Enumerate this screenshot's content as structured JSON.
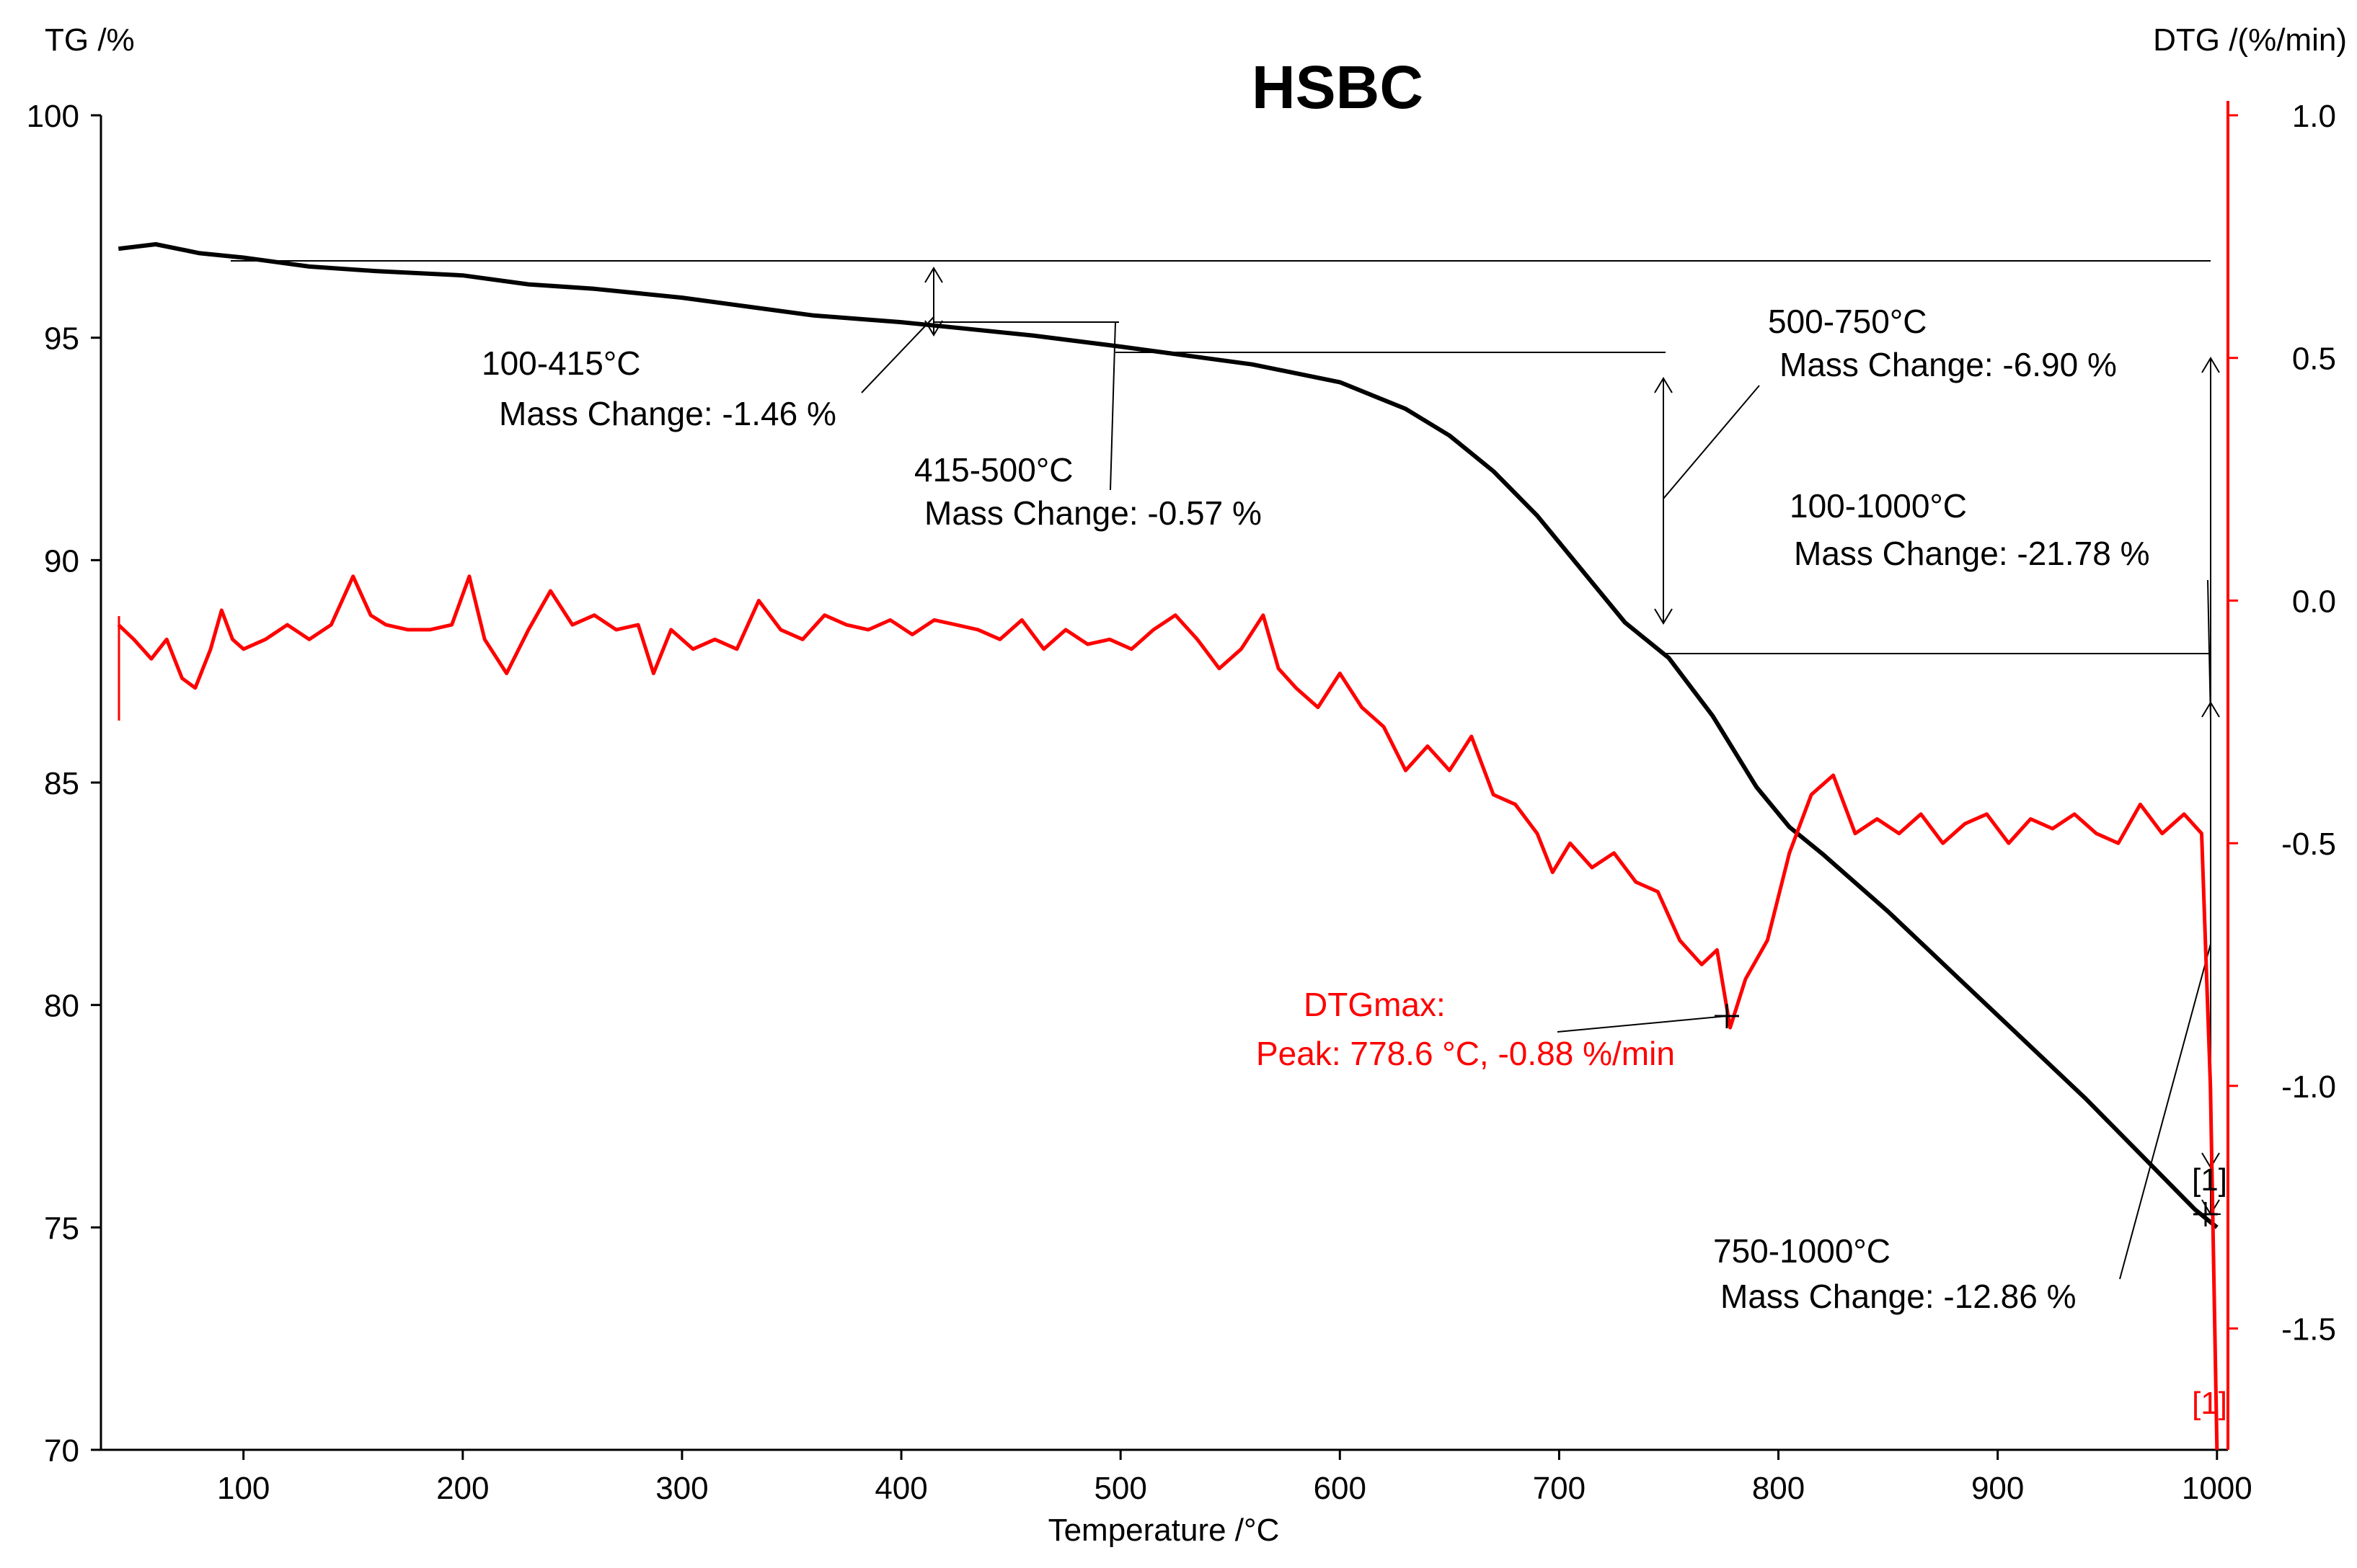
{
  "chart_data": {
    "type": "line",
    "title": "HSBC",
    "xlabel": "Temperature /°C",
    "ylabel_left": "TG /%",
    "ylabel_right": "DTG /(%/min)",
    "xlim": [
      35,
      1005
    ],
    "ylim_left": [
      70,
      100
    ],
    "ylim_right": [
      -1.75,
      1.0
    ],
    "x_ticks": [
      "100",
      "200",
      "300",
      "400",
      "500",
      "600",
      "700",
      "800",
      "900",
      "1000"
    ],
    "y_ticks_left": [
      "100",
      "95",
      "90",
      "85",
      "80",
      "75",
      "70"
    ],
    "y_ticks_right": [
      "1.0",
      "0.5",
      "0.0",
      "-0.5",
      "-1.0",
      "-1.5"
    ],
    "grid": false,
    "colors": {
      "tg": "#000000",
      "dtg": "#ff0000",
      "annotation": "#000000"
    },
    "series": [
      {
        "axis": "left",
        "x": [
          43,
          60,
          80,
          100,
          130,
          160,
          200,
          230,
          260,
          300,
          330,
          360,
          400,
          430,
          460,
          500,
          530,
          560,
          600,
          630,
          650,
          670,
          690,
          710,
          730,
          750,
          770,
          790,
          805,
          820,
          850,
          880,
          910,
          940,
          970,
          990,
          1000
        ],
        "values": [
          97.0,
          97.1,
          96.9,
          96.8,
          96.6,
          96.5,
          96.4,
          96.2,
          96.1,
          95.9,
          95.7,
          95.5,
          95.35,
          95.2,
          95.05,
          94.8,
          94.6,
          94.4,
          94.0,
          93.4,
          92.8,
          92.0,
          91.0,
          89.8,
          88.6,
          87.8,
          86.5,
          84.9,
          84.0,
          83.4,
          82.1,
          80.7,
          79.3,
          77.9,
          76.4,
          75.4,
          75.0
        ]
      },
      {
        "axis": "right",
        "x": [
          43,
          50,
          58,
          65,
          72,
          78,
          85,
          90,
          95,
          100,
          110,
          120,
          130,
          140,
          150,
          158,
          165,
          175,
          185,
          195,
          203,
          210,
          220,
          230,
          240,
          250,
          260,
          270,
          280,
          287,
          295,
          305,
          315,
          325,
          335,
          345,
          355,
          365,
          375,
          385,
          395,
          405,
          415,
          425,
          435,
          445,
          455,
          465,
          475,
          485,
          495,
          505,
          515,
          525,
          535,
          545,
          555,
          565,
          572,
          580,
          590,
          600,
          610,
          620,
          630,
          640,
          650,
          660,
          670,
          680,
          690,
          697,
          705,
          715,
          725,
          735,
          745,
          755,
          765,
          772,
          778,
          785,
          795,
          805,
          815,
          825,
          835,
          845,
          855,
          865,
          875,
          885,
          895,
          905,
          915,
          925,
          935,
          945,
          955,
          965,
          975,
          985,
          993,
          997,
          1000
        ],
        "values": [
          -0.05,
          -0.08,
          -0.12,
          -0.08,
          -0.16,
          -0.18,
          -0.1,
          -0.02,
          -0.08,
          -0.1,
          -0.08,
          -0.05,
          -0.08,
          -0.05,
          0.05,
          -0.03,
          -0.05,
          -0.06,
          -0.06,
          -0.05,
          0.05,
          -0.08,
          -0.15,
          -0.06,
          0.02,
          -0.05,
          -0.03,
          -0.06,
          -0.05,
          -0.15,
          -0.06,
          -0.1,
          -0.08,
          -0.1,
          0.0,
          -0.06,
          -0.08,
          -0.03,
          -0.05,
          -0.06,
          -0.04,
          -0.07,
          -0.04,
          -0.05,
          -0.06,
          -0.08,
          -0.04,
          -0.1,
          -0.06,
          -0.09,
          -0.08,
          -0.1,
          -0.06,
          -0.03,
          -0.08,
          -0.14,
          -0.1,
          -0.03,
          -0.14,
          -0.18,
          -0.22,
          -0.15,
          -0.22,
          -0.26,
          -0.35,
          -0.3,
          -0.35,
          -0.28,
          -0.4,
          -0.42,
          -0.48,
          -0.56,
          -0.5,
          -0.55,
          -0.52,
          -0.58,
          -0.6,
          -0.7,
          -0.75,
          -0.72,
          -0.88,
          -0.78,
          -0.7,
          -0.52,
          -0.4,
          -0.36,
          -0.48,
          -0.45,
          -0.48,
          -0.44,
          -0.5,
          -0.46,
          -0.44,
          -0.5,
          -0.45,
          -0.47,
          -0.44,
          -0.48,
          -0.5,
          -0.42,
          -0.48,
          -0.44,
          -0.48,
          -1.0,
          -1.75
        ]
      }
    ],
    "annotations": [
      {
        "line1": "100-415°C",
        "line2": "Mass Change: -1.46 %"
      },
      {
        "line1": "415-500°C",
        "line2": "Mass Change: -0.57 %"
      },
      {
        "line1": "500-750°C",
        "line2": "Mass Change: -6.90 %"
      },
      {
        "line1": "100-1000°C",
        "line2": "Mass Change: -21.78 %"
      },
      {
        "line1": "750-1000°C",
        "line2": "Mass Change: -12.86 %"
      }
    ],
    "peak": {
      "line1": "DTGmax:",
      "line2": "Peak: 778.6 °C, -0.88 %/min",
      "x": 778.6,
      "y": -0.88
    },
    "markers": {
      "tg_end": "[1]",
      "dtg_end": "[1]"
    }
  }
}
